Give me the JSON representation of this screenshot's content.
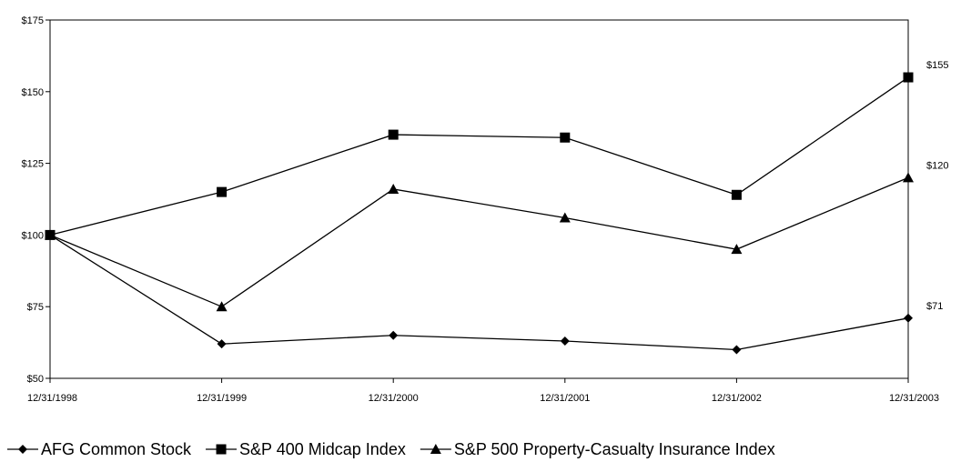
{
  "chart_data": {
    "type": "line",
    "title": "",
    "xlabel": "",
    "ylabel": "",
    "categories": [
      "12/31/1998",
      "12/31/1999",
      "12/31/2000",
      "12/31/2001",
      "12/31/2002",
      "12/31/2003"
    ],
    "ylim": [
      50,
      175
    ],
    "yticks": [
      50,
      75,
      100,
      125,
      150,
      175
    ],
    "ytick_labels": [
      "$50",
      "$75",
      "$100",
      "$125",
      "$150",
      "$175"
    ],
    "grid": false,
    "legend_position": "bottom",
    "series": [
      {
        "name": "AFG Common Stock",
        "marker": "diamond",
        "values": [
          100,
          62,
          65,
          63,
          60,
          71
        ],
        "end_label": "$71"
      },
      {
        "name": "S&P 400 Midcap Index",
        "marker": "square",
        "values": [
          100,
          115,
          135,
          134,
          114,
          155
        ],
        "end_label": "$155"
      },
      {
        "name": "S&P 500 Property-Casualty Insurance Index",
        "marker": "triangle",
        "values": [
          100,
          75,
          116,
          106,
          95,
          120
        ],
        "end_label": "$120"
      }
    ]
  }
}
